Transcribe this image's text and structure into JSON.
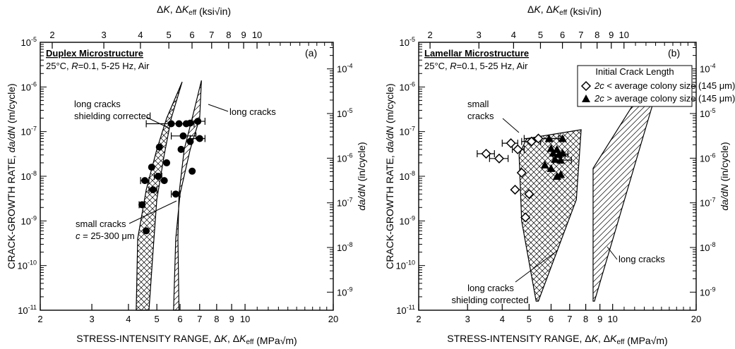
{
  "chart_data": [
    {
      "type": "scatter",
      "panel_label": "(a)",
      "title": "Duplex Microstructure",
      "conditions": "25°C, R=0.1, 5-25 Hz, Air",
      "xlabel_bottom": "STRESS-INTENSITY RANGE, ΔK, ΔK_eff (MPa√m)",
      "xlabel_top": "ΔK, ΔK_eff (ksi√in)",
      "ylabel_left": "CRACK-GROWTH RATE, da/dN (m/cycle)",
      "ylabel_right": "da/dN (in/cycle)",
      "x_scale": "log",
      "y_scale": "log",
      "xlim": [
        2,
        20
      ],
      "ylim": [
        1e-11,
        1e-05
      ],
      "x_ticks_bottom": [
        "2",
        "3",
        "4",
        "5",
        "6",
        "7",
        "8",
        "9",
        "10",
        "20"
      ],
      "x_ticks_top": [
        "2",
        "3",
        "4",
        "5",
        "6",
        "7",
        "8",
        "9",
        "10"
      ],
      "y_ticks_left": [
        "10-11",
        "10-10",
        "10-9",
        "10-8",
        "10-7",
        "10-6",
        "10-5"
      ],
      "y_ticks_right": [
        "10-9",
        "10-8",
        "10-7",
        "10-6",
        "10-5",
        "10-4"
      ],
      "annotations": [
        "long cracks shielding corrected",
        "long cracks",
        "small cracks",
        "c = 25-300 μm"
      ],
      "bands": [
        {
          "name": "long cracks shielding corrected",
          "pattern": "crosshatch",
          "outline": [
            [
              4.25,
              1e-11
            ],
            [
              4.3,
              4e-10
            ],
            [
              4.6,
              5e-09
            ],
            [
              5.0,
              4e-08
            ],
            [
              5.4,
              2e-07
            ],
            [
              6.1,
              1.3e-06
            ],
            [
              5.6,
              2e-07
            ],
            [
              5.3,
              3e-08
            ],
            [
              5.0,
              3e-09
            ],
            [
              4.85,
              2e-10
            ],
            [
              4.7,
              1e-11
            ]
          ]
        },
        {
          "name": "long cracks",
          "pattern": "diagonal",
          "outline": [
            [
              5.7,
              1e-11
            ],
            [
              5.8,
              4e-10
            ],
            [
              6.0,
              4e-09
            ],
            [
              6.5,
              4e-08
            ],
            [
              7.0,
              2e-07
            ],
            [
              7.1,
              1.4e-06
            ],
            [
              6.6,
              2e-07
            ],
            [
              6.2,
              4e-08
            ],
            [
              5.95,
              4e-09
            ],
            [
              5.9,
              4e-10
            ],
            [
              5.95,
              1e-11
            ]
          ]
        }
      ],
      "series": [
        {
          "name": "small cracks",
          "marker": "filled-circle",
          "points": [
            {
              "x": 4.45,
              "y": 2.3e-09,
              "xerr": [
                4.35,
                4.55
              ]
            },
            {
              "x": 4.6,
              "y": 6e-10
            },
            {
              "x": 4.55,
              "y": 8e-09,
              "xerr": [
                4.4,
                4.7
              ]
            },
            {
              "x": 4.85,
              "y": 5e-09,
              "xerr": [
                4.7,
                5.0
              ]
            },
            {
              "x": 4.8,
              "y": 1.6e-08
            },
            {
              "x": 5.05,
              "y": 1e-08,
              "xerr": [
                4.9,
                5.2
              ]
            },
            {
              "x": 5.3,
              "y": 8e-09
            },
            {
              "x": 5.1,
              "y": 4.5e-08
            },
            {
              "x": 5.4,
              "y": 2e-08
            },
            {
              "x": 5.6,
              "y": 1.5e-07,
              "xerr": [
                4.6,
                6.7
              ]
            },
            {
              "x": 5.8,
              "y": 4e-09,
              "xerr": [
                5.6,
                6.0
              ]
            },
            {
              "x": 5.95,
              "y": 1.5e-07
            },
            {
              "x": 6.3,
              "y": 1.5e-07
            },
            {
              "x": 6.15,
              "y": 8e-08,
              "xerr": [
                5.6,
                6.8
              ]
            },
            {
              "x": 6.5,
              "y": 6e-08
            },
            {
              "x": 6.5,
              "y": 1.55e-07
            },
            {
              "x": 6.9,
              "y": 1.7e-07,
              "xerr": [
                6.6,
                7.3
              ]
            },
            {
              "x": 7.0,
              "y": 7e-08,
              "xerr": [
                6.5,
                7.3
              ]
            },
            {
              "x": 6.05,
              "y": 4e-08
            },
            {
              "x": 6.6,
              "y": 1.3e-08
            }
          ]
        }
      ]
    },
    {
      "type": "scatter",
      "panel_label": "(b)",
      "title": "Lamellar Microstructure",
      "conditions": "25°C, R=0.1, 5-25 Hz, Air",
      "xlabel_bottom": "STRESS-INTENSITY RANGE, ΔK, ΔK_eff (MPa√m)",
      "xlabel_top": "ΔK, ΔK_eff (ksi√in)",
      "ylabel_left": "CRACK-GROWTH RATE, da/dN (m/cycle)",
      "ylabel_right": "da/dN (in/cycle)",
      "x_scale": "log",
      "y_scale": "log",
      "xlim": [
        2,
        20
      ],
      "ylim": [
        1e-11,
        1e-05
      ],
      "x_ticks_bottom": [
        "2",
        "3",
        "4",
        "5",
        "6",
        "7",
        "8",
        "9",
        "10",
        "20"
      ],
      "x_ticks_top": [
        "2",
        "3",
        "4",
        "5",
        "6",
        "7",
        "8",
        "9",
        "10"
      ],
      "y_ticks_left": [
        "10-11",
        "10-10",
        "10-9",
        "10-8",
        "10-7",
        "10-6",
        "10-5"
      ],
      "y_ticks_right": [
        "10-9",
        "10-8",
        "10-7",
        "10-6",
        "10-5",
        "10-4"
      ],
      "legend": {
        "title": "Initial Crack Length",
        "entries": [
          {
            "marker": "open-diamond",
            "label": "2c < average colony size (145 μm)"
          },
          {
            "marker": "filled-triangle",
            "label": "2c > average colony size (145 μm)"
          }
        ],
        "position": "top-right"
      },
      "annotations": [
        "small cracks",
        "long cracks shielding corrected",
        "long cracks"
      ],
      "bands": [
        {
          "name": "long cracks shielding corrected",
          "pattern": "crosshatch",
          "outline": [
            [
              5.3,
              1.6e-11
            ],
            [
              4.7,
              1e-09
            ],
            [
              4.6,
              3e-08
            ],
            [
              4.9,
              7e-08
            ],
            [
              7.7,
              1.1e-07
            ],
            [
              7.4,
              3e-09
            ],
            [
              5.4,
              1.6e-11
            ]
          ]
        },
        {
          "name": "long cracks",
          "pattern": "diagonal",
          "outline": [
            [
              8.5,
              1.6e-11
            ],
            [
              8.5,
              1.5e-08
            ],
            [
              13.0,
              1e-06
            ],
            [
              14.4,
              8e-07
            ],
            [
              8.6,
              1.6e-11
            ]
          ]
        }
      ],
      "series": [
        {
          "name": "2c < average colony size (145 μm)",
          "marker": "open-diamond",
          "points": [
            {
              "x": 3.5,
              "y": 3.2e-08,
              "xerr": [
                3.25,
                3.75
              ]
            },
            {
              "x": 3.9,
              "y": 2.5e-08,
              "xerr": [
                3.6,
                4.2
              ]
            },
            {
              "x": 4.3,
              "y": 5.5e-08,
              "xerr": [
                4.0,
                4.55
              ]
            },
            {
              "x": 4.55,
              "y": 4e-08,
              "xerr": [
                4.35,
                4.8
              ]
            },
            {
              "x": 4.7,
              "y": 1.2e-08
            },
            {
              "x": 4.45,
              "y": 5e-09
            },
            {
              "x": 4.85,
              "y": 1.2e-09
            },
            {
              "x": 5.0,
              "y": 4e-09
            },
            {
              "x": 5.1,
              "y": 6e-08,
              "xerr": [
                4.7,
                5.5
              ]
            },
            {
              "x": 5.4,
              "y": 7e-08,
              "xerr": [
                4.8,
                6.4
              ]
            }
          ]
        },
        {
          "name": "2c > average colony size (145 μm)",
          "marker": "filled-triangle",
          "points": [
            {
              "x": 5.9,
              "y": 7e-08,
              "xerr": [
                5.4,
                6.5
              ]
            },
            {
              "x": 6.0,
              "y": 4.2e-08
            },
            {
              "x": 6.3,
              "y": 4e-08
            },
            {
              "x": 6.1,
              "y": 3.3e-08
            },
            {
              "x": 6.4,
              "y": 3.1e-08,
              "xerr": [
                6.2,
                6.9
              ]
            },
            {
              "x": 6.6,
              "y": 3.3e-08
            },
            {
              "x": 6.2,
              "y": 2.4e-08
            },
            {
              "x": 6.5,
              "y": 2.3e-08,
              "xerr": [
                6.1,
                7.1
              ]
            },
            {
              "x": 5.7,
              "y": 1.8e-08
            },
            {
              "x": 6.0,
              "y": 1.5e-08
            },
            {
              "x": 6.3,
              "y": 1e-08
            },
            {
              "x": 6.5,
              "y": 1.1e-08
            },
            {
              "x": 6.6,
              "y": 7e-08
            }
          ]
        }
      ]
    }
  ]
}
